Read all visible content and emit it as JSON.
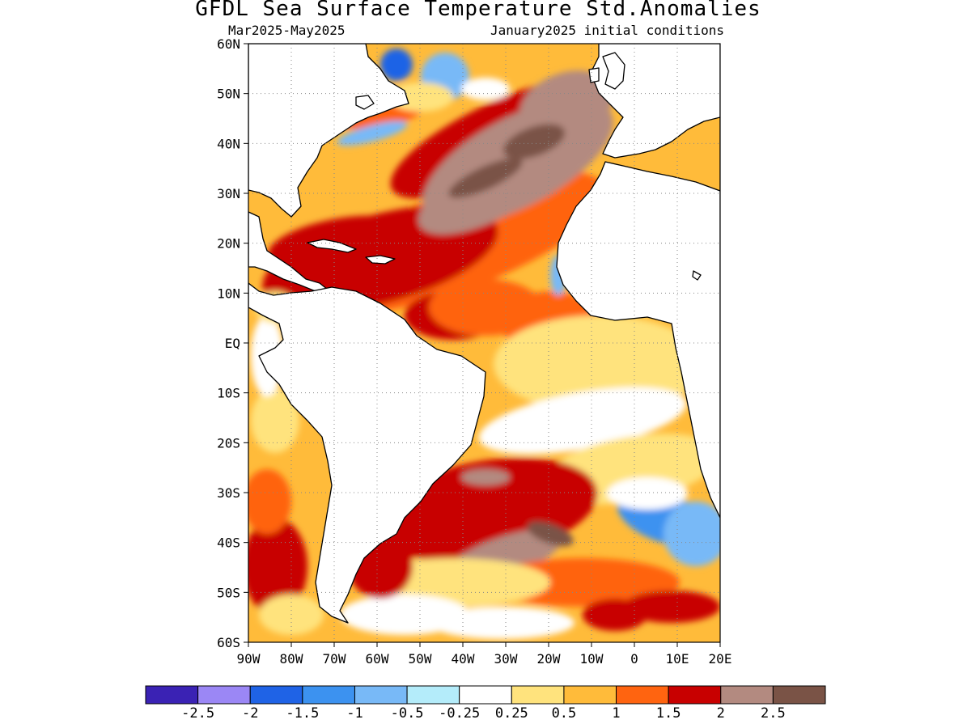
{
  "title": "GFDL Sea Surface Temperature Std.Anomalies",
  "subtitle_left": "Mar2025-May2025",
  "subtitle_right": "January2025 initial conditions",
  "map": {
    "lon_range": [
      -90,
      20
    ],
    "lat_range": [
      -60,
      60
    ],
    "land_color": "#ffffff",
    "coastline_color": "#000000",
    "grid": "dotted",
    "lat_ticks": [
      {
        "value": 60,
        "label": "60N"
      },
      {
        "value": 50,
        "label": "50N"
      },
      {
        "value": 40,
        "label": "40N"
      },
      {
        "value": 30,
        "label": "30N"
      },
      {
        "value": 20,
        "label": "20N"
      },
      {
        "value": 10,
        "label": "10N"
      },
      {
        "value": 0,
        "label": "EQ"
      },
      {
        "value": -10,
        "label": "10S"
      },
      {
        "value": -20,
        "label": "20S"
      },
      {
        "value": -30,
        "label": "30S"
      },
      {
        "value": -40,
        "label": "40S"
      },
      {
        "value": -50,
        "label": "50S"
      },
      {
        "value": -60,
        "label": "60S"
      }
    ],
    "lon_ticks": [
      {
        "value": -90,
        "label": "90W"
      },
      {
        "value": -80,
        "label": "80W"
      },
      {
        "value": -70,
        "label": "70W"
      },
      {
        "value": -60,
        "label": "60W"
      },
      {
        "value": -50,
        "label": "50W"
      },
      {
        "value": -40,
        "label": "40W"
      },
      {
        "value": -30,
        "label": "30W"
      },
      {
        "value": -20,
        "label": "20W"
      },
      {
        "value": -10,
        "label": "10W"
      },
      {
        "value": 0,
        "label": "0"
      },
      {
        "value": 10,
        "label": "10E"
      },
      {
        "value": 20,
        "label": "20E"
      }
    ]
  },
  "colorbar": {
    "colors": [
      "#3a22b4",
      "#9b87f5",
      "#1f63e6",
      "#3c92f0",
      "#78b9f7",
      "#b4ecfa",
      "#ffffff",
      "#ffe37d",
      "#ffbb3a",
      "#ff6410",
      "#c80000",
      "#b38a80",
      "#7a5346"
    ],
    "labels": [
      "-2.5",
      "-2",
      "-1.5",
      "-1",
      "-0.5",
      "-0.25",
      "0.25",
      "0.5",
      "1",
      "1.5",
      "2",
      "2.5"
    ]
  }
}
